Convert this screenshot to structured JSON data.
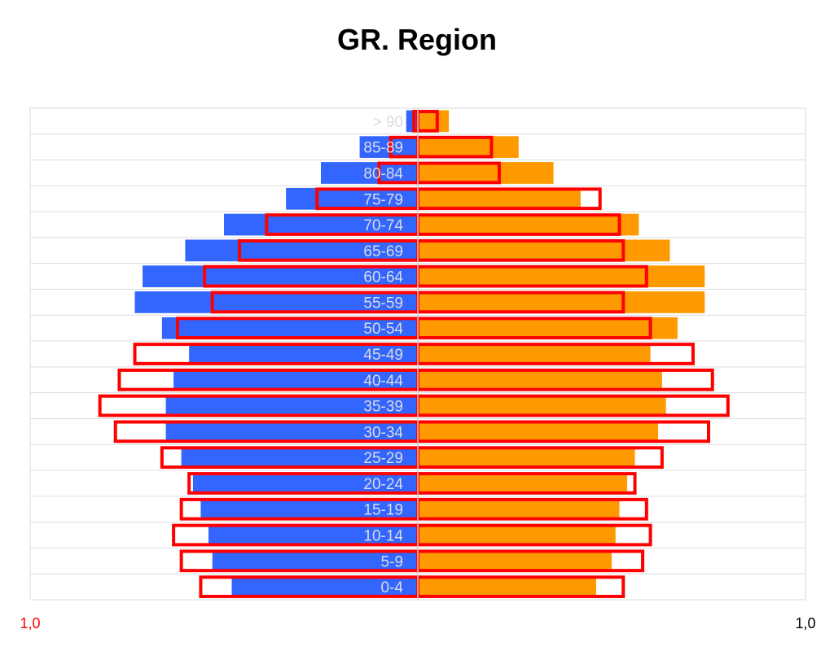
{
  "chart_data": {
    "type": "bar",
    "orientation": "horizontal",
    "layout": "population-pyramid",
    "title": "GR. Region",
    "categories": [
      "> 90",
      "85-89",
      "80-84",
      "75-79",
      "70-74",
      "65-69",
      "60-64",
      "55-59",
      "50-54",
      "45-49",
      "40-44",
      "35-39",
      "30-34",
      "25-29",
      "20-24",
      "15-19",
      "10-14",
      "5-9",
      "0-4"
    ],
    "series": [
      {
        "role": "left-filled",
        "color": "#3366ff",
        "values": [
          0.03,
          0.15,
          0.25,
          0.34,
          0.5,
          0.6,
          0.71,
          0.73,
          0.66,
          0.59,
          0.63,
          0.65,
          0.65,
          0.61,
          0.58,
          0.56,
          0.54,
          0.53,
          0.48
        ]
      },
      {
        "role": "right-filled",
        "color": "#ff9900",
        "values": [
          0.08,
          0.26,
          0.35,
          0.42,
          0.57,
          0.65,
          0.74,
          0.74,
          0.67,
          0.6,
          0.63,
          0.64,
          0.62,
          0.56,
          0.54,
          0.52,
          0.51,
          0.5,
          0.46
        ]
      },
      {
        "role": "left-outline",
        "color": "#ff0000",
        "values": [
          0.01,
          0.07,
          0.1,
          0.26,
          0.39,
          0.46,
          0.55,
          0.53,
          0.62,
          0.73,
          0.77,
          0.82,
          0.78,
          0.66,
          0.59,
          0.61,
          0.63,
          0.61,
          0.56
        ]
      },
      {
        "role": "right-outline",
        "color": "#ff0000",
        "values": [
          0.05,
          0.19,
          0.21,
          0.47,
          0.52,
          0.53,
          0.59,
          0.53,
          0.6,
          0.71,
          0.76,
          0.8,
          0.75,
          0.63,
          0.56,
          0.59,
          0.6,
          0.58,
          0.53
        ]
      }
    ],
    "xlim": [
      -1,
      1
    ],
    "x_tick_labels": {
      "left": "1,0",
      "right": "1,0"
    },
    "x_tick_colors": {
      "left": "#ff0000",
      "right": "#000000"
    },
    "category_label_color": "#dcdcdc",
    "grid": true
  }
}
